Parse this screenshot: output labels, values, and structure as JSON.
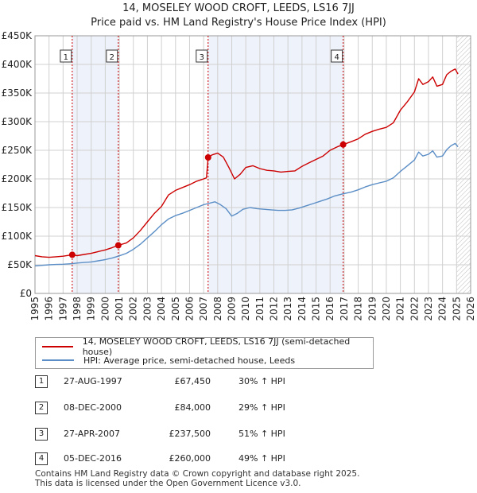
{
  "header": {
    "title": "14, MOSELEY WOOD CROFT, LEEDS, LS16 7JJ",
    "subtitle": "Price paid vs. HM Land Registry's House Price Index (HPI)"
  },
  "colors": {
    "property_line": "#cc0000",
    "hpi_line": "#5b8ec6",
    "plot_bg": "#eef2fa",
    "grid": "#d0d0d0",
    "vline": "#cc0000"
  },
  "legend": {
    "property": "14, MOSELEY WOOD CROFT, LEEDS, LS16 7JJ (semi-detached house)",
    "hpi": "HPI: Average price, semi-detached house, Leeds"
  },
  "sales": [
    {
      "num": "1",
      "date": "27-AUG-1997",
      "price": "£67,450",
      "hpi": "30% ↑ HPI"
    },
    {
      "num": "2",
      "date": "08-DEC-2000",
      "price": "£84,000",
      "hpi": "29% ↑ HPI"
    },
    {
      "num": "3",
      "date": "27-APR-2007",
      "price": "£237,500",
      "hpi": "51% ↑ HPI"
    },
    {
      "num": "4",
      "date": "05-DEC-2016",
      "price": "£260,000",
      "hpi": "49% ↑ HPI"
    }
  ],
  "footer": {
    "line1": "Contains HM Land Registry data © Crown copyright and database right 2025.",
    "line2": "This data is licensed under the Open Government Licence v3.0."
  },
  "chart_data": {
    "type": "line",
    "title": "14, MOSELEY WOOD CROFT, LEEDS, LS16 7JJ",
    "xlim": [
      1995,
      2026
    ],
    "ylim": [
      0,
      450000
    ],
    "x_ticks": [
      1995,
      1996,
      1997,
      1998,
      1999,
      2000,
      2001,
      2002,
      2003,
      2004,
      2005,
      2006,
      2007,
      2008,
      2009,
      2010,
      2011,
      2012,
      2013,
      2014,
      2015,
      2016,
      2017,
      2018,
      2019,
      2020,
      2021,
      2022,
      2023,
      2024,
      2025,
      2026
    ],
    "y_ticks": [
      {
        "value": 0,
        "label": "£0"
      },
      {
        "value": 50000,
        "label": "£50K"
      },
      {
        "value": 100000,
        "label": "£100K"
      },
      {
        "value": 150000,
        "label": "£150K"
      },
      {
        "value": 200000,
        "label": "£200K"
      },
      {
        "value": 250000,
        "label": "£250K"
      },
      {
        "value": 300000,
        "label": "£300K"
      },
      {
        "value": 350000,
        "label": "£350K"
      },
      {
        "value": 400000,
        "label": "£400K"
      },
      {
        "value": 450000,
        "label": "£450K"
      }
    ],
    "shaded_ranges": [
      [
        1997.65,
        2000.93
      ],
      [
        2007.32,
        2016.93
      ]
    ],
    "future_hatch_from": 2025.0,
    "sale_markers": [
      {
        "label": "1",
        "x": 1997.65,
        "y": 67450
      },
      {
        "label": "2",
        "x": 2000.93,
        "y": 84000
      },
      {
        "label": "3",
        "x": 2007.32,
        "y": 237500
      },
      {
        "label": "4",
        "x": 2016.93,
        "y": 260000
      }
    ],
    "series": [
      {
        "name": "14, MOSELEY WOOD CROFT, LEEDS, LS16 7JJ (semi-detached house)",
        "color": "#cc0000",
        "points": [
          [
            1995.0,
            66000
          ],
          [
            1995.5,
            64000
          ],
          [
            1996.0,
            63000
          ],
          [
            1996.5,
            64000
          ],
          [
            1997.0,
            65000
          ],
          [
            1997.65,
            67450
          ],
          [
            1998.0,
            66000
          ],
          [
            1998.5,
            68000
          ],
          [
            1999.0,
            70000
          ],
          [
            1999.5,
            73000
          ],
          [
            2000.0,
            76000
          ],
          [
            2000.5,
            80000
          ],
          [
            2000.93,
            84000
          ],
          [
            2001.5,
            88000
          ],
          [
            2002.0,
            97000
          ],
          [
            2002.5,
            110000
          ],
          [
            2003.0,
            125000
          ],
          [
            2003.5,
            140000
          ],
          [
            2004.0,
            152000
          ],
          [
            2004.5,
            172000
          ],
          [
            2005.0,
            180000
          ],
          [
            2005.5,
            185000
          ],
          [
            2006.0,
            190000
          ],
          [
            2006.5,
            196000
          ],
          [
            2007.0,
            200000
          ],
          [
            2007.2,
            202000
          ],
          [
            2007.32,
            237500
          ],
          [
            2007.6,
            242000
          ],
          [
            2008.0,
            245000
          ],
          [
            2008.4,
            238000
          ],
          [
            2008.8,
            220000
          ],
          [
            2009.2,
            200000
          ],
          [
            2009.6,
            208000
          ],
          [
            2010.0,
            220000
          ],
          [
            2010.5,
            223000
          ],
          [
            2011.0,
            218000
          ],
          [
            2011.5,
            215000
          ],
          [
            2012.0,
            214000
          ],
          [
            2012.5,
            212000
          ],
          [
            2013.0,
            213000
          ],
          [
            2013.5,
            214000
          ],
          [
            2014.0,
            222000
          ],
          [
            2014.5,
            228000
          ],
          [
            2015.0,
            234000
          ],
          [
            2015.5,
            240000
          ],
          [
            2016.0,
            250000
          ],
          [
            2016.5,
            256000
          ],
          [
            2016.93,
            260000
          ],
          [
            2017.5,
            265000
          ],
          [
            2018.0,
            270000
          ],
          [
            2018.5,
            278000
          ],
          [
            2019.0,
            283000
          ],
          [
            2019.5,
            287000
          ],
          [
            2020.0,
            290000
          ],
          [
            2020.5,
            298000
          ],
          [
            2021.0,
            320000
          ],
          [
            2021.5,
            335000
          ],
          [
            2022.0,
            352000
          ],
          [
            2022.3,
            375000
          ],
          [
            2022.6,
            365000
          ],
          [
            2023.0,
            370000
          ],
          [
            2023.3,
            378000
          ],
          [
            2023.6,
            362000
          ],
          [
            2024.0,
            365000
          ],
          [
            2024.3,
            382000
          ],
          [
            2024.6,
            388000
          ],
          [
            2024.9,
            392000
          ],
          [
            2025.1,
            383000
          ]
        ]
      },
      {
        "name": "HPI: Average price, semi-detached house, Leeds",
        "color": "#5b8ec6",
        "points": [
          [
            1995.0,
            48000
          ],
          [
            1995.5,
            49000
          ],
          [
            1996.0,
            50000
          ],
          [
            1996.5,
            50500
          ],
          [
            1997.0,
            51000
          ],
          [
            1997.65,
            52000
          ],
          [
            1998.0,
            53000
          ],
          [
            1998.5,
            54000
          ],
          [
            1999.0,
            55000
          ],
          [
            1999.5,
            57000
          ],
          [
            2000.0,
            59000
          ],
          [
            2000.5,
            62000
          ],
          [
            2000.93,
            65000
          ],
          [
            2001.5,
            70000
          ],
          [
            2002.0,
            77000
          ],
          [
            2002.5,
            86000
          ],
          [
            2003.0,
            97000
          ],
          [
            2003.5,
            108000
          ],
          [
            2004.0,
            120000
          ],
          [
            2004.5,
            130000
          ],
          [
            2005.0,
            136000
          ],
          [
            2005.5,
            140000
          ],
          [
            2006.0,
            145000
          ],
          [
            2006.5,
            150000
          ],
          [
            2007.0,
            155000
          ],
          [
            2007.32,
            157000
          ],
          [
            2007.8,
            160000
          ],
          [
            2008.2,
            155000
          ],
          [
            2008.6,
            148000
          ],
          [
            2009.0,
            135000
          ],
          [
            2009.4,
            140000
          ],
          [
            2009.8,
            147000
          ],
          [
            2010.3,
            150000
          ],
          [
            2010.8,
            148000
          ],
          [
            2011.3,
            147000
          ],
          [
            2011.8,
            146000
          ],
          [
            2012.3,
            145000
          ],
          [
            2012.8,
            145000
          ],
          [
            2013.3,
            146000
          ],
          [
            2013.8,
            149000
          ],
          [
            2014.3,
            153000
          ],
          [
            2014.8,
            157000
          ],
          [
            2015.3,
            161000
          ],
          [
            2015.8,
            165000
          ],
          [
            2016.3,
            170000
          ],
          [
            2016.93,
            174000
          ],
          [
            2017.5,
            177000
          ],
          [
            2018.0,
            181000
          ],
          [
            2018.5,
            186000
          ],
          [
            2019.0,
            190000
          ],
          [
            2019.5,
            193000
          ],
          [
            2020.0,
            196000
          ],
          [
            2020.5,
            202000
          ],
          [
            2021.0,
            213000
          ],
          [
            2021.5,
            223000
          ],
          [
            2022.0,
            233000
          ],
          [
            2022.3,
            247000
          ],
          [
            2022.6,
            240000
          ],
          [
            2023.0,
            243000
          ],
          [
            2023.3,
            249000
          ],
          [
            2023.6,
            238000
          ],
          [
            2024.0,
            240000
          ],
          [
            2024.3,
            251000
          ],
          [
            2024.6,
            258000
          ],
          [
            2024.9,
            262000
          ],
          [
            2025.1,
            256000
          ]
        ]
      }
    ]
  }
}
